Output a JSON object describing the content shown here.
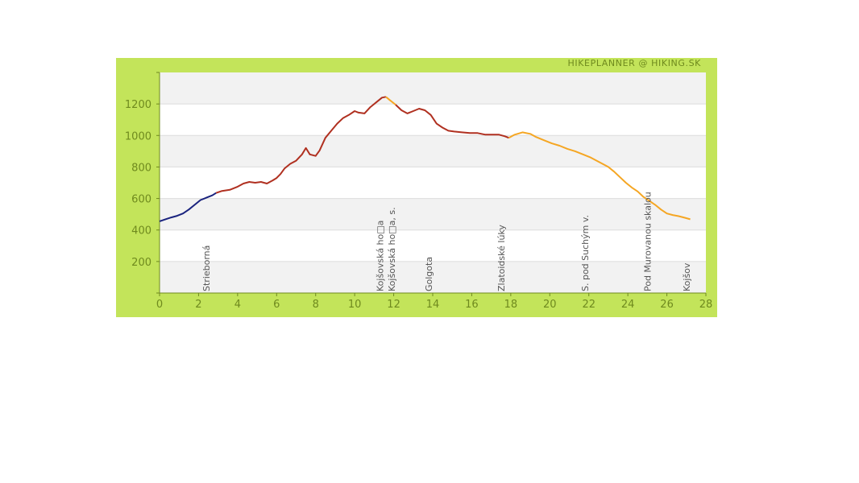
{
  "chart_data": {
    "type": "line",
    "credit": "HIKEPLANNER @ HIKING.SK",
    "title": "",
    "xlabel": "",
    "ylabel": "",
    "xlim": [
      0,
      28
    ],
    "ylim": [
      0,
      1400
    ],
    "x_ticks": [
      0,
      2,
      4,
      6,
      8,
      10,
      12,
      14,
      16,
      18,
      20,
      22,
      24,
      26,
      28
    ],
    "y_ticks": [
      200,
      400,
      600,
      800,
      1000,
      1200
    ],
    "grid": true,
    "series": [
      {
        "color": "#1a237e",
        "points": [
          [
            0,
            455
          ],
          [
            0.3,
            468
          ],
          [
            0.6,
            480
          ],
          [
            0.9,
            490
          ],
          [
            1.2,
            505
          ],
          [
            1.5,
            530
          ],
          [
            1.8,
            560
          ],
          [
            2.1,
            590
          ],
          [
            2.4,
            605
          ],
          [
            2.7,
            620
          ],
          [
            2.9,
            635
          ]
        ]
      },
      {
        "color": "#b03020",
        "points": [
          [
            2.9,
            635
          ],
          [
            3.2,
            648
          ],
          [
            3.6,
            655
          ],
          [
            4.0,
            675
          ],
          [
            4.3,
            695
          ],
          [
            4.6,
            705
          ],
          [
            4.9,
            700
          ],
          [
            5.2,
            705
          ],
          [
            5.5,
            695
          ],
          [
            5.8,
            715
          ],
          [
            6.0,
            730
          ],
          [
            6.2,
            755
          ],
          [
            6.4,
            790
          ],
          [
            6.7,
            820
          ],
          [
            7.0,
            840
          ],
          [
            7.3,
            880
          ],
          [
            7.5,
            920
          ],
          [
            7.7,
            880
          ],
          [
            8.0,
            870
          ],
          [
            8.2,
            905
          ],
          [
            8.5,
            985
          ],
          [
            8.8,
            1030
          ],
          [
            9.1,
            1075
          ],
          [
            9.4,
            1110
          ],
          [
            9.7,
            1130
          ],
          [
            10.0,
            1155
          ],
          [
            10.2,
            1145
          ],
          [
            10.5,
            1140
          ],
          [
            10.8,
            1180
          ],
          [
            11.1,
            1210
          ],
          [
            11.4,
            1240
          ],
          [
            11.6,
            1245
          ]
        ]
      },
      {
        "color": "#f5a623",
        "points": [
          [
            11.6,
            1245
          ],
          [
            11.8,
            1225
          ],
          [
            12.1,
            1195
          ]
        ]
      },
      {
        "color": "#b03020",
        "points": [
          [
            12.1,
            1195
          ],
          [
            12.4,
            1160
          ],
          [
            12.7,
            1140
          ],
          [
            13.0,
            1155
          ],
          [
            13.3,
            1170
          ],
          [
            13.6,
            1160
          ],
          [
            13.9,
            1130
          ],
          [
            14.2,
            1075
          ],
          [
            14.5,
            1050
          ],
          [
            14.8,
            1030
          ],
          [
            15.1,
            1025
          ],
          [
            15.5,
            1020
          ],
          [
            15.9,
            1015
          ],
          [
            16.3,
            1015
          ],
          [
            16.7,
            1005
          ],
          [
            17.0,
            1005
          ],
          [
            17.4,
            1005
          ],
          [
            17.7,
            995
          ],
          [
            17.9,
            985
          ]
        ]
      },
      {
        "color": "#f5a623",
        "points": [
          [
            17.9,
            985
          ],
          [
            18.2,
            1005
          ],
          [
            18.6,
            1020
          ],
          [
            19.0,
            1010
          ],
          [
            19.3,
            990
          ],
          [
            19.7,
            970
          ],
          [
            20.1,
            950
          ],
          [
            20.5,
            935
          ],
          [
            20.9,
            915
          ],
          [
            21.3,
            900
          ],
          [
            21.7,
            880
          ],
          [
            22.1,
            860
          ],
          [
            22.4,
            840
          ],
          [
            22.7,
            820
          ],
          [
            23.0,
            800
          ],
          [
            23.3,
            770
          ],
          [
            23.6,
            735
          ],
          [
            23.9,
            700
          ],
          [
            24.2,
            670
          ],
          [
            24.5,
            645
          ],
          [
            24.8,
            610
          ],
          [
            25.1,
            585
          ],
          [
            25.4,
            560
          ],
          [
            25.7,
            530
          ],
          [
            26.0,
            505
          ],
          [
            26.3,
            495
          ],
          [
            26.6,
            488
          ],
          [
            26.9,
            478
          ],
          [
            27.2,
            468
          ]
        ]
      }
    ],
    "poi_labels": [
      {
        "x": 2.4,
        "label": "Strieborná"
      },
      {
        "x": 11.3,
        "label": "Kojšovská ho□a"
      },
      {
        "x": 11.9,
        "label": "Kojšovská ho□a, s."
      },
      {
        "x": 13.8,
        "label": "Golgota"
      },
      {
        "x": 17.5,
        "label": "Zlatoidské lúky"
      },
      {
        "x": 21.8,
        "label": "S. pod Suchým v."
      },
      {
        "x": 25.0,
        "label": "Pod Murovanou skalou"
      },
      {
        "x": 27.0,
        "label": "Kojšov"
      }
    ]
  }
}
